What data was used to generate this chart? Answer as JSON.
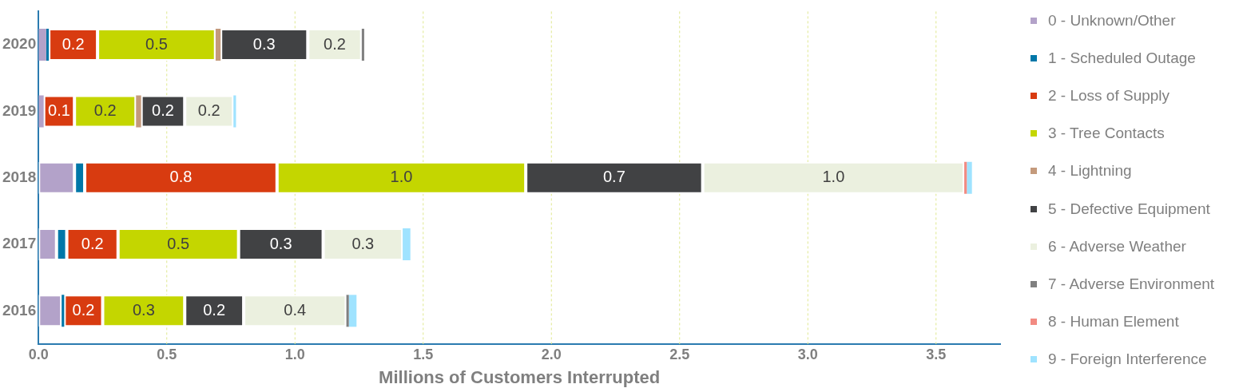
{
  "chart_data": {
    "type": "bar",
    "orientation": "horizontal",
    "stacked": true,
    "xlabel": "Millions of Customers Interrupted",
    "categories": [
      "2020",
      "2019",
      "2018",
      "2017",
      "2016"
    ],
    "xlim": [
      0,
      3.75
    ],
    "xticks": [
      {
        "value": 0,
        "label": "0.0"
      },
      0.5,
      {
        "value": 1,
        "label": "1.0"
      },
      1.5,
      {
        "value": 2,
        "label": "2.0"
      },
      2.5,
      {
        "value": 3,
        "label": "3.0"
      },
      3.5
    ],
    "grid": "x",
    "legend": "right",
    "series": [
      {
        "name": "0 - Unknown/Other",
        "color": "#b3a2c9",
        "values": [
          0.03,
          0.02,
          0.14,
          0.07,
          0.09
        ]
      },
      {
        "name": "1 - Scheduled Outage",
        "color": "#0077a8",
        "values": [
          0.01,
          null,
          0.04,
          0.04,
          0.01
        ]
      },
      {
        "name": "2 - Loss of Supply",
        "color": "#d83b10",
        "values": [
          0.19,
          0.12,
          0.75,
          0.2,
          0.15
        ],
        "value_labels": [
          "0.2",
          "0.1",
          "0.8",
          "0.2",
          "0.2"
        ]
      },
      {
        "name": "3 - Tree Contacts",
        "color": "#c4d600",
        "values": [
          0.46,
          0.24,
          0.97,
          0.47,
          0.32
        ],
        "value_labels": [
          "0.5",
          "0.2",
          "1.0",
          "0.5",
          "0.3"
        ]
      },
      {
        "name": "4 - Lightning",
        "color": "#c49a7c",
        "values": [
          0.02,
          0.02,
          null,
          null,
          null
        ]
      },
      {
        "name": "5 - Defective Equipment",
        "color": "#414244",
        "values": [
          0.34,
          0.17,
          0.69,
          0.33,
          0.23
        ],
        "value_labels": [
          "0.3",
          "0.2",
          "0.7",
          "0.3",
          "0.2"
        ]
      },
      {
        "name": "6 - Adverse Weather",
        "color": "#ebf0df",
        "values": [
          0.21,
          0.19,
          1.02,
          0.31,
          0.4
        ],
        "value_labels": [
          "0.2",
          "0.2",
          "1.0",
          "0.3",
          "0.4"
        ]
      },
      {
        "name": "7 - Adverse Environment",
        "color": "#808080",
        "values": [
          0.01,
          null,
          null,
          null,
          0.01
        ]
      },
      {
        "name": "8 - Human Element",
        "color": "#f28b82",
        "values": [
          null,
          null,
          0.01,
          null,
          null
        ]
      },
      {
        "name": "9 - Foreign Interference",
        "color": "#9fe3ff",
        "values": [
          null,
          0.01,
          0.02,
          0.03,
          0.03
        ]
      }
    ]
  }
}
